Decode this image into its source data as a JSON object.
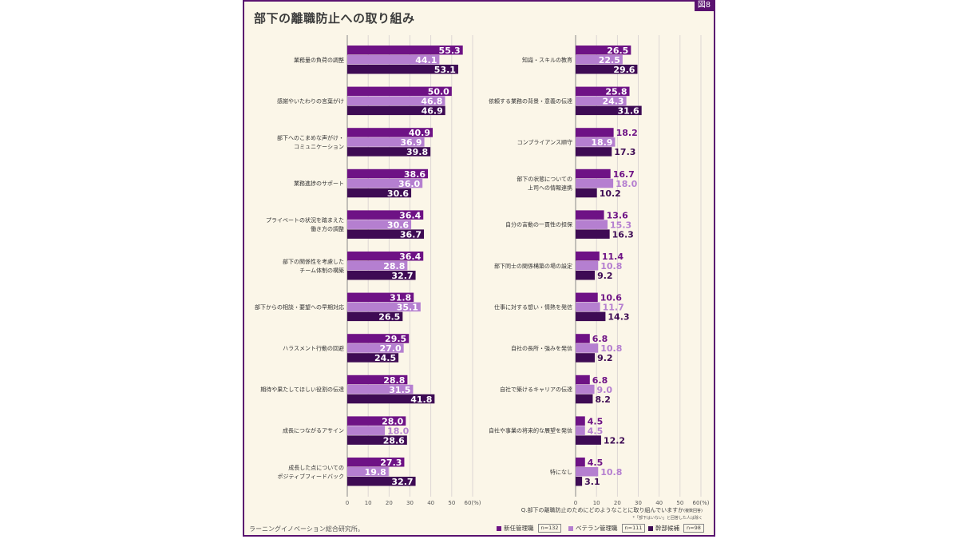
{
  "figure_label": "図8",
  "title": "部下の離職防止への取り組み",
  "question": "Q.部下の離職防止のためにどのようなことに取り組んでいますか",
  "question_suffix": "(複数回答)",
  "note": "*「部下はいない」と回答した人は除く",
  "source": "ラーニングイノベーション総合研究所。",
  "colors": {
    "series1": "#6e1285",
    "series2": "#b57fd0",
    "series3": "#3e0b54",
    "gridline": "#d6cfcf"
  },
  "legend": [
    {
      "label": "新任管理職",
      "n": "n=132"
    },
    {
      "label": "ベテラン管理職",
      "n": "n=111"
    },
    {
      "label": "幹部候補",
      "n": "n=98"
    }
  ],
  "chart_data": [
    {
      "type": "bar",
      "orientation": "horizontal",
      "categories": [
        "業務量の負荷の調整",
        "感謝やいたわりの言葉がけ",
        "部下へのこまめな声がけ・\nコミュニケーション",
        "業務進捗のサポート",
        "プライベートの状況を踏まえた\n働き方の調整",
        "部下の関係性を考慮した\nチーム体制の構築",
        "部下からの相談・要望への早期対応",
        "ハラスメント行動の回避",
        "期待や果たしてほしい役割の伝達",
        "成長につながるアサイン",
        "成長した点についての\nポジティブフィードバック"
      ],
      "series": [
        {
          "name": "新任管理職",
          "values": [
            55.3,
            50.0,
            40.9,
            38.6,
            36.4,
            36.4,
            31.8,
            29.5,
            28.8,
            28.0,
            27.3
          ]
        },
        {
          "name": "ベテラン管理職",
          "values": [
            44.1,
            46.8,
            36.9,
            36.0,
            30.6,
            28.8,
            35.1,
            27.0,
            31.5,
            18.0,
            19.8
          ]
        },
        {
          "name": "幹部候補",
          "values": [
            53.1,
            46.9,
            39.8,
            30.6,
            36.7,
            32.7,
            26.5,
            24.5,
            41.8,
            28.6,
            32.7
          ]
        }
      ],
      "xlim": [
        0,
        60
      ],
      "xticks": [
        "0",
        "10",
        "20",
        "30",
        "40",
        "50",
        "60(%)"
      ]
    },
    {
      "type": "bar",
      "orientation": "horizontal",
      "categories": [
        "知識・スキルの教育",
        "依頼する業務の背景・意義の伝達",
        "コンプライアンス順守",
        "部下の状態についての\n上司への情報連携",
        "自分の言動の一貫性の担保",
        "部下同士の関係構築の場の設定",
        "仕事に対する想い・情熱を発信",
        "自社の長所・強みを発信",
        "自社で築けるキャリアの伝達",
        "自社や事業の将来的な展望を発信",
        "特になし"
      ],
      "series": [
        {
          "name": "新任管理職",
          "values": [
            26.5,
            25.8,
            18.2,
            16.7,
            13.6,
            11.4,
            10.6,
            6.8,
            6.8,
            4.5,
            4.5
          ]
        },
        {
          "name": "ベテラン管理職",
          "values": [
            22.5,
            24.3,
            18.9,
            18.0,
            15.3,
            10.8,
            11.7,
            10.8,
            9.0,
            4.5,
            10.8
          ]
        },
        {
          "name": "幹部候補",
          "values": [
            29.6,
            31.6,
            17.3,
            10.2,
            16.3,
            9.2,
            14.3,
            9.2,
            8.2,
            12.2,
            3.1
          ]
        }
      ],
      "xlim": [
        0,
        60
      ],
      "xticks": [
        "0",
        "10",
        "20",
        "30",
        "40",
        "50",
        "60(%)"
      ]
    }
  ]
}
